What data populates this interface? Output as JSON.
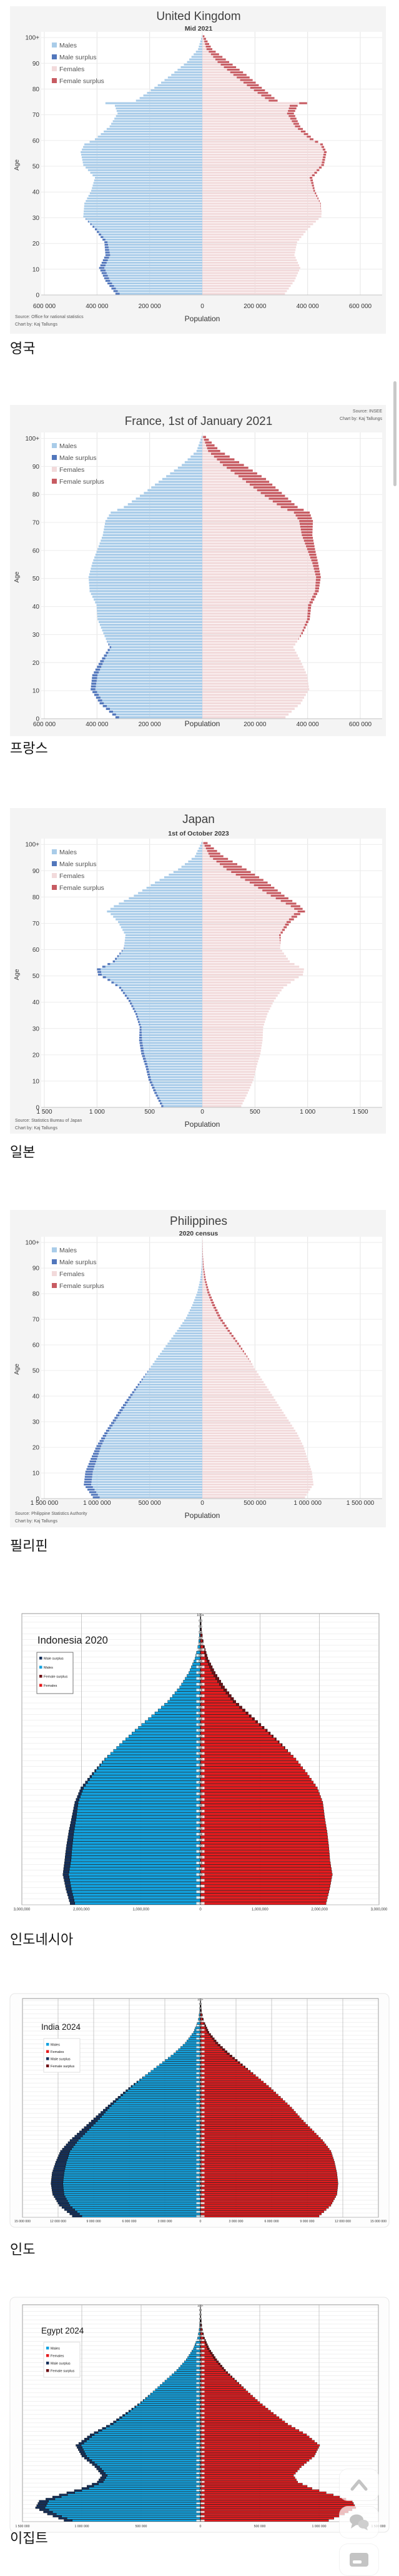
{
  "captions": [
    {
      "text": "영국"
    },
    {
      "text": "프랑스"
    },
    {
      "text": "일본"
    },
    {
      "text": "필리핀"
    },
    {
      "text": "인도네시아"
    },
    {
      "text": "인도"
    },
    {
      "text": "이집트"
    }
  ],
  "floating_buttons": [
    {
      "label": "scroll-to-top",
      "icon": "chevron-up-icon"
    },
    {
      "label": "comments",
      "icon": "speech-bubbles-icon"
    },
    {
      "label": "write",
      "icon": "card-icon"
    }
  ],
  "chart_data": [
    {
      "type": "population-pyramid",
      "style": "kaj",
      "title": "United Kingdom",
      "subtitle": "Mid 2021",
      "xlabel": "Population",
      "ylabel": "Age",
      "source_lines": [
        "Source: Office for national statistics",
        "Chart by: Kaj Tallungs"
      ],
      "source_position": "bottom-left",
      "legend": [
        {
          "label": "Males",
          "color_key": "males"
        },
        {
          "label": "Male surplus",
          "color_key": "male_surplus"
        },
        {
          "label": "Females",
          "color_key": "females"
        },
        {
          "label": "Female surplus",
          "color_key": "female_surplus"
        }
      ],
      "colors": {
        "males": "#a9cce9",
        "male_surplus": "#5277bc",
        "females": "#f2dadb",
        "female_surplus": "#c75b62",
        "figure_bg": "#f4f4f4"
      },
      "x_max": 600000,
      "x_tick_labels": [
        "600 000",
        "400 000",
        "200 000",
        "0",
        "200 000",
        "400 000",
        "600 000"
      ],
      "age_tick_labels": [
        "100+",
        "90",
        "80",
        "70",
        "60",
        "50",
        "40",
        "30",
        "20",
        "10",
        "0"
      ],
      "axis_unit": "persons per single year of age",
      "series": {
        "ages": [
          0,
          5,
          10,
          15,
          20,
          25,
          30,
          35,
          40,
          45,
          50,
          55,
          58,
          60,
          65,
          70,
          73,
          74,
          75,
          80,
          85,
          90,
          95,
          100
        ],
        "males": [
          330000,
          368000,
          392000,
          368000,
          372000,
          408000,
          452000,
          448000,
          422000,
          408000,
          452000,
          462000,
          448000,
          408000,
          352000,
          322000,
          332000,
          368000,
          252000,
          182000,
          118000,
          58000,
          16000,
          2000
        ],
        "females": [
          314000,
          350000,
          372000,
          350000,
          360000,
          400000,
          452000,
          450000,
          428000,
          418000,
          462000,
          472000,
          458000,
          422000,
          372000,
          348000,
          362000,
          398000,
          286000,
          226000,
          168000,
          102000,
          38000,
          8000
        ]
      }
    },
    {
      "type": "population-pyramid",
      "style": "kaj",
      "title": "France, 1st of January 2021",
      "subtitle": "",
      "xlabel": "Population",
      "ylabel": "Age",
      "source_lines": [
        "Source: INSEE",
        "Chart by: Kaj Tallungs"
      ],
      "source_position": "top-right",
      "legend": [
        {
          "label": "Males",
          "color_key": "males"
        },
        {
          "label": "Male surplus",
          "color_key": "male_surplus"
        },
        {
          "label": "Females",
          "color_key": "females"
        },
        {
          "label": "Female surplus",
          "color_key": "female_surplus"
        }
      ],
      "colors": {
        "males": "#a9cce9",
        "male_surplus": "#5277bc",
        "females": "#f2dadb",
        "female_surplus": "#c75b62",
        "figure_bg": "#f4f4f4"
      },
      "x_max": 600000,
      "x_tick_labels": [
        "600 000",
        "400 000",
        "200 000",
        "",
        "200 000",
        "400 000",
        "600 000"
      ],
      "age_tick_labels": [
        "100+",
        "90",
        "80",
        "70",
        "60",
        "50",
        "40",
        "30",
        "20",
        "10",
        "0"
      ],
      "axis_unit": "persons per single year of age",
      "series": {
        "ages": [
          0,
          5,
          10,
          15,
          20,
          25,
          30,
          35,
          40,
          45,
          50,
          55,
          60,
          65,
          70,
          73,
          75,
          80,
          85,
          90,
          95,
          100
        ],
        "males": [
          330000,
          390000,
          424000,
          418000,
          388000,
          352000,
          376000,
          398000,
          402000,
          428000,
          432000,
          418000,
          398000,
          378000,
          368000,
          348000,
          298000,
          222000,
          152000,
          78000,
          22000,
          3000
        ],
        "females": [
          316000,
          374000,
          406000,
          398000,
          374000,
          346000,
          382000,
          408000,
          414000,
          442000,
          450000,
          440000,
          428000,
          418000,
          420000,
          408000,
          362000,
          302000,
          242000,
          158000,
          68000,
          14000
        ]
      }
    },
    {
      "type": "population-pyramid",
      "style": "kaj",
      "title": "Japan",
      "subtitle": "1st of October 2023",
      "xlabel": "Population",
      "ylabel": "Age",
      "source_lines": [
        "Source: Statistics Bureau of Japan",
        "Chart by: Kaj Tallungs"
      ],
      "source_position": "bottom-left",
      "legend": [
        {
          "label": "Males",
          "color_key": "males"
        },
        {
          "label": "Male surplus",
          "color_key": "male_surplus"
        },
        {
          "label": "Females",
          "color_key": "females"
        },
        {
          "label": "Female surplus",
          "color_key": "female_surplus"
        }
      ],
      "colors": {
        "males": "#a9cce9",
        "male_surplus": "#5277bc",
        "females": "#f2dadb",
        "female_surplus": "#c75b62",
        "figure_bg": "#f4f4f4"
      },
      "x_max": 1500,
      "x_tick_labels": [
        "1 500",
        "1 000",
        "500",
        "0",
        "500",
        "1 000",
        "1 500"
      ],
      "age_tick_labels": [
        "100+",
        "90",
        "80",
        "70",
        "60",
        "50",
        "40",
        "30",
        "20",
        "10",
        "0"
      ],
      "axis_unit": "thousands per single year of age",
      "series": {
        "ages": [
          0,
          5,
          10,
          15,
          20,
          25,
          30,
          35,
          40,
          45,
          48,
          50,
          52,
          55,
          60,
          65,
          70,
          73,
          74,
          76,
          80,
          85,
          90,
          95,
          100
        ],
        "males": [
          390,
          455,
          510,
          540,
          580,
          600,
          595,
          635,
          700,
          790,
          900,
          990,
          1000,
          850,
          745,
          730,
          800,
          870,
          905,
          840,
          650,
          450,
          230,
          70,
          10
        ],
        "females": [
          370,
          432,
          486,
          515,
          552,
          572,
          578,
          618,
          680,
          770,
          875,
          955,
          965,
          830,
          740,
          745,
          840,
          930,
          975,
          930,
          780,
          620,
          420,
          200,
          50
        ]
      }
    },
    {
      "type": "population-pyramid",
      "style": "kaj",
      "title": "Philippines",
      "subtitle": "2020 census",
      "xlabel": "Population",
      "ylabel": "Age",
      "source_lines": [
        "Source: Philippine Statistics Authority",
        "Chart by: Kaj Tallungs"
      ],
      "source_position": "bottom-left",
      "legend": [
        {
          "label": "Males",
          "color_key": "males"
        },
        {
          "label": "Male surplus",
          "color_key": "male_surplus"
        },
        {
          "label": "Females",
          "color_key": "females"
        },
        {
          "label": "Female surplus",
          "color_key": "female_surplus"
        }
      ],
      "colors": {
        "males": "#a9cce9",
        "male_surplus": "#5277bc",
        "females": "#f2dadb",
        "female_surplus": "#c75b62",
        "figure_bg": "#f4f4f4"
      },
      "x_max": 1500000,
      "x_tick_labels": [
        "1 500 000",
        "1 000 000",
        "500 000",
        "0",
        "500 000",
        "1 000 000",
        "1 500 000"
      ],
      "age_tick_labels": [
        "100+",
        "90",
        "80",
        "70",
        "60",
        "50",
        "40",
        "30",
        "20",
        "10",
        "0"
      ],
      "axis_unit": "persons per single year of age",
      "series": {
        "ages": [
          0,
          5,
          10,
          15,
          20,
          25,
          30,
          35,
          40,
          45,
          50,
          55,
          60,
          65,
          70,
          75,
          80,
          85,
          90,
          95,
          100
        ],
        "males": [
          1040000,
          1125000,
          1110000,
          1060000,
          1005000,
          930000,
          850000,
          770000,
          685000,
          595000,
          505000,
          420000,
          330000,
          240000,
          155000,
          95000,
          48000,
          20000,
          7000,
          2000,
          500
        ],
        "females": [
          975000,
          1055000,
          1040000,
          1000000,
          960000,
          900000,
          820000,
          740000,
          662000,
          582000,
          502000,
          428000,
          348000,
          262000,
          180000,
          120000,
          68000,
          34000,
          14000,
          5000,
          1500
        ]
      }
    },
    {
      "type": "population-pyramid",
      "style": "excel",
      "title": "Indonesia 2020",
      "legend": [
        {
          "label": "Male surplus",
          "color_key": "male_surplus"
        },
        {
          "label": "Males",
          "color_key": "males"
        },
        {
          "label": "Female surplus",
          "color_key": "female_surplus"
        },
        {
          "label": "Females",
          "color_key": "females"
        }
      ],
      "colors": {
        "males": "#12a2e0",
        "male_surplus": "#142f5a",
        "females": "#e41b1e",
        "female_surplus": "#6e1016"
      },
      "x_max": 3000000,
      "x_tick_labels": [
        "3,000,000",
        "2,000,000",
        "1,000,000",
        "0",
        "1,000,000",
        "2,000,000",
        "3,000,000"
      ],
      "age_label_top": "100+",
      "age_label_step": 2,
      "axis_unit": "persons per single year of age",
      "series": {
        "ages": [
          0,
          5,
          10,
          15,
          20,
          25,
          30,
          35,
          40,
          45,
          50,
          55,
          60,
          65,
          70,
          75,
          80,
          85,
          90,
          95,
          100
        ],
        "males": [
          2190000,
          2260000,
          2310000,
          2280000,
          2250000,
          2210000,
          2160000,
          2110000,
          2010000,
          1820000,
          1610000,
          1360000,
          1100000,
          820000,
          550000,
          350000,
          195000,
          90000,
          33000,
          10000,
          2000
        ],
        "females": [
          2110000,
          2170000,
          2215000,
          2175000,
          2155000,
          2125000,
          2085000,
          2055000,
          1965000,
          1795000,
          1605000,
          1375000,
          1125000,
          855000,
          595000,
          405000,
          250000,
          125000,
          55000,
          18000,
          4000
        ]
      }
    },
    {
      "type": "population-pyramid",
      "style": "excel",
      "title": "India 2024",
      "legend": [
        {
          "label": "Males",
          "color_key": "males"
        },
        {
          "label": "Females",
          "color_key": "females"
        },
        {
          "label": "Male surplus",
          "color_key": "male_surplus"
        },
        {
          "label": "Female surplus",
          "color_key": "female_surplus"
        }
      ],
      "colors": {
        "males": "#12a2e0",
        "male_surplus": "#142f5a",
        "females": "#e41b1e",
        "female_surplus": "#6e1016"
      },
      "x_max": 15000000,
      "x_tick_labels": [
        "15 000 000",
        "12 000 000",
        "9 000 000",
        "6 000 000",
        "3 000 000",
        "0",
        "3 000 000",
        "6 000 000",
        "9 000 000",
        "12 000 000",
        "15 000 000"
      ],
      "age_label_top": "100+",
      "age_label_step": 2,
      "axis_unit": "persons per single year of age",
      "series": {
        "ages": [
          0,
          5,
          10,
          15,
          20,
          25,
          30,
          35,
          40,
          45,
          50,
          55,
          60,
          65,
          70,
          75,
          80,
          85,
          90,
          95,
          100
        ],
        "males": [
          10800000,
          11900000,
          12450000,
          12600000,
          12500000,
          12200000,
          11800000,
          11000000,
          10000000,
          9000000,
          8000000,
          6950000,
          5850000,
          4650000,
          3450000,
          2250000,
          1280000,
          580000,
          210000,
          55000,
          8000
        ],
        "females": [
          10000000,
          11000000,
          11500000,
          11600000,
          11500000,
          11300000,
          11000000,
          10300000,
          9400000,
          8500000,
          7700000,
          6750000,
          5750000,
          4650000,
          3550000,
          2450000,
          1480000,
          720000,
          290000,
          85000,
          15000
        ]
      }
    },
    {
      "type": "population-pyramid",
      "style": "excel",
      "title": "Egypt 2024",
      "legend": [
        {
          "label": "Males",
          "color_key": "males"
        },
        {
          "label": "Females",
          "color_key": "females"
        },
        {
          "label": "Male surplus",
          "color_key": "male_surplus"
        },
        {
          "label": "Female surplus",
          "color_key": "female_surplus"
        }
      ],
      "colors": {
        "males": "#12a2e0",
        "male_surplus": "#142f5a",
        "females": "#e41b1e",
        "female_surplus": "#6e1016"
      },
      "x_max": 1500000,
      "x_tick_labels": [
        "1 500 000",
        "1 000 000",
        "500 000",
        "0",
        "500 000",
        "1 000 000",
        "1 500 000"
      ],
      "age_label_top": "100+",
      "age_label_step": 2,
      "axis_unit": "persons per single year of age",
      "series": {
        "ages": [
          0,
          3,
          6,
          9,
          12,
          15,
          18,
          21,
          25,
          30,
          35,
          40,
          45,
          50,
          55,
          60,
          65,
          70,
          75,
          80,
          85,
          90,
          95,
          100
        ],
        "males": [
          1150000,
          1290000,
          1390000,
          1360000,
          1190000,
          1000000,
          870000,
          830000,
          890000,
          1000000,
          1050000,
          930000,
          760000,
          630000,
          505000,
          400000,
          300000,
          200000,
          120000,
          60000,
          25000,
          8000,
          2000,
          300
        ],
        "females": [
          1080000,
          1215000,
          1310000,
          1280000,
          1120000,
          940000,
          820000,
          785000,
          850000,
          960000,
          1005000,
          895000,
          735000,
          615000,
          500000,
          400000,
          305000,
          212000,
          138000,
          76000,
          35000,
          13000,
          4000,
          800
        ]
      }
    }
  ]
}
